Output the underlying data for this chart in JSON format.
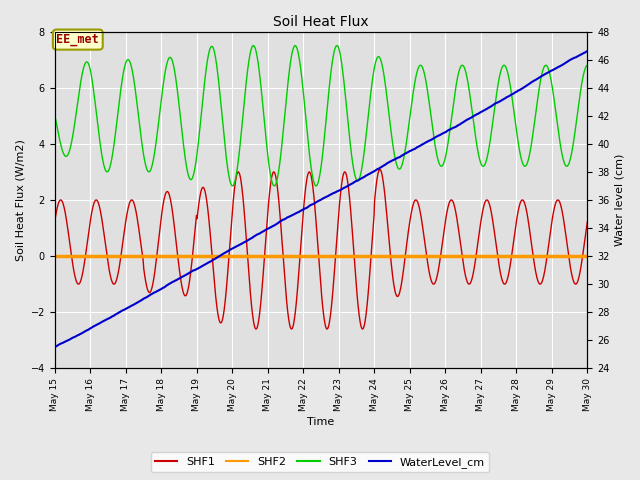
{
  "title": "Soil Heat Flux",
  "xlabel": "Time",
  "ylabel_left": "Soil Heat Flux (W/m2)",
  "ylabel_right": "Water level (cm)",
  "annotation": "EE_met",
  "x_start": 15,
  "x_end": 30,
  "ylim_left": [
    -4,
    8
  ],
  "ylim_right": [
    24,
    48
  ],
  "y_ticks_left": [
    -4,
    -2,
    0,
    2,
    4,
    6,
    8
  ],
  "y_ticks_right": [
    24,
    26,
    28,
    30,
    32,
    34,
    36,
    38,
    40,
    42,
    44,
    46,
    48
  ],
  "x_ticks": [
    15,
    16,
    17,
    18,
    19,
    20,
    21,
    22,
    23,
    24,
    25,
    26,
    27,
    28,
    29,
    30
  ],
  "x_tick_labels": [
    "May 15",
    "May 16",
    "May 17",
    "May 18",
    "May 19",
    "May 20",
    "May 21",
    "May 22",
    "May 23",
    "May 24",
    "May 25",
    "May 26",
    "May 27",
    "May 28",
    "May 29",
    "May 30"
  ],
  "shf1_color": "#cc0000",
  "shf2_color": "#ff9900",
  "shf3_color": "#00cc00",
  "wl_color": "#0000cc",
  "fig_facecolor": "#e8e8e8",
  "plot_facecolor": "#e0e0e0",
  "grid_color": "#ffffff",
  "annot_facecolor": "#ffffcc",
  "annot_edgecolor": "#999900",
  "annot_textcolor": "#990000",
  "legend_labels": [
    "SHF1",
    "SHF2",
    "SHF3",
    "WaterLevel_cm"
  ]
}
